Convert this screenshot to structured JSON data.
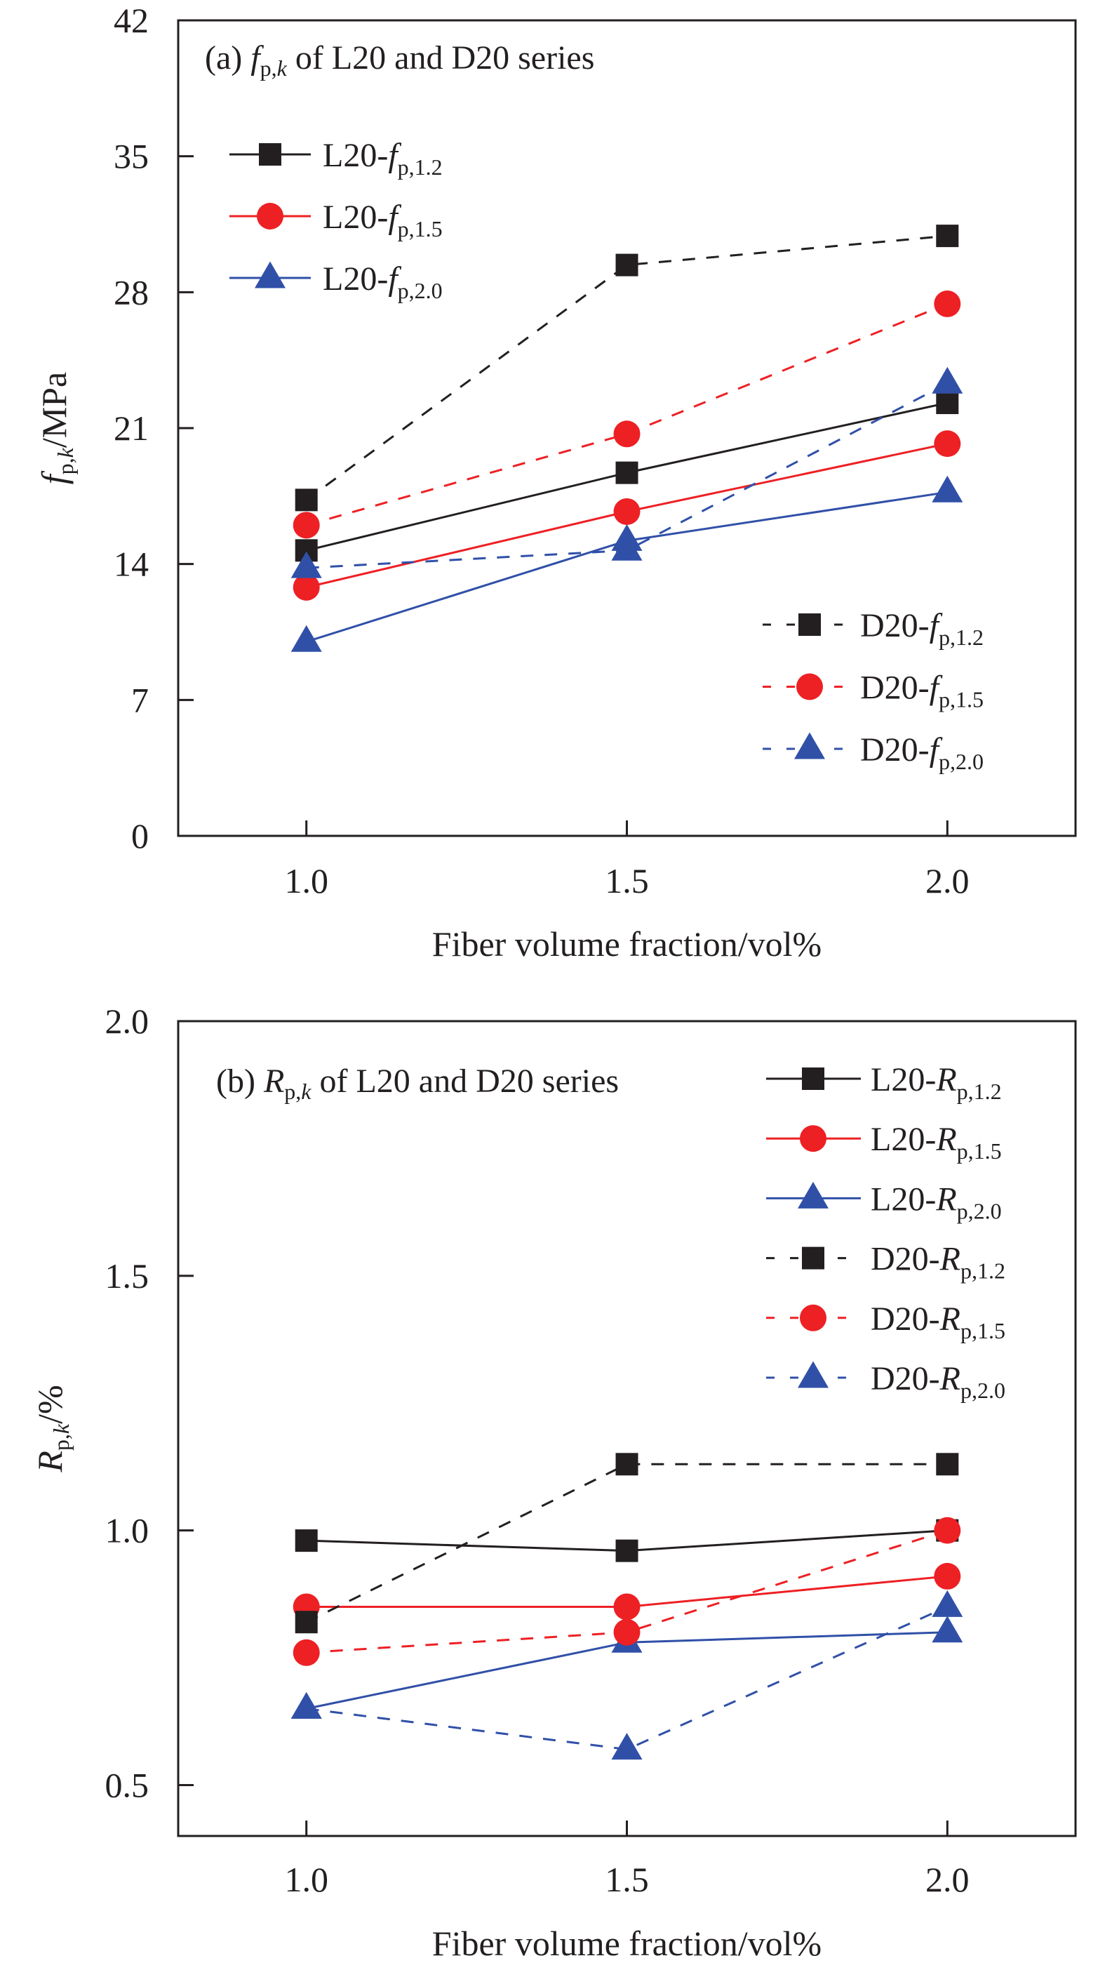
{
  "colors": {
    "black": "#231f20",
    "red": "#ed2024",
    "blue": "#3050a8",
    "axis": "#231f20"
  },
  "chart_data": [
    {
      "type": "line",
      "panel_label": "(a)",
      "title": {
        "prefix": "(a) ",
        "symbol": "f",
        "subscript": "p,",
        "subscript_italic": "k",
        "suffix": " of L20 and D20 series"
      },
      "xlabel": "Fiber volume fraction/vol%",
      "ylabel": {
        "symbol": "f",
        "subscript": "p,",
        "subscript_italic": "k",
        "suffix": "/MPa"
      },
      "x": [
        1.0,
        1.5,
        2.0
      ],
      "xticks": [
        "1.0",
        "1.5",
        "2.0"
      ],
      "xlim": [
        0.8,
        2.2
      ],
      "ylim": [
        0,
        42
      ],
      "yticks": [
        "0",
        "7",
        "14",
        "21",
        "28",
        "35",
        "42"
      ],
      "grid": false,
      "legends": [
        {
          "placement": "top-left",
          "series": [
            0,
            1,
            2
          ]
        },
        {
          "placement": "bottom-right",
          "series": [
            3,
            4,
            5
          ]
        }
      ],
      "series": [
        {
          "name": "L20-fp,1.2",
          "label_main": "L20-",
          "label_symbol": "f",
          "label_sub": "p,1.2",
          "group": "L20",
          "color": "black",
          "marker": "square",
          "dash": "solid",
          "values": [
            14.7,
            18.7,
            22.3
          ]
        },
        {
          "name": "L20-fp,1.5",
          "label_main": "L20-",
          "label_symbol": "f",
          "label_sub": "p,1.5",
          "group": "L20",
          "color": "red",
          "marker": "circle",
          "dash": "solid",
          "values": [
            12.8,
            16.7,
            20.2
          ]
        },
        {
          "name": "L20-fp,2.0",
          "label_main": "L20-",
          "label_symbol": "f",
          "label_sub": "p,2.0",
          "group": "L20",
          "color": "blue",
          "marker": "triangle",
          "dash": "solid",
          "values": [
            10.0,
            15.2,
            17.7
          ]
        },
        {
          "name": "D20-fp,1.2",
          "label_main": "D20-",
          "label_symbol": "f",
          "label_sub": "p,1.2",
          "group": "D20",
          "color": "black",
          "marker": "square",
          "dash": "dashed",
          "values": [
            17.3,
            29.4,
            30.9
          ]
        },
        {
          "name": "D20-fp,1.5",
          "label_main": "D20-",
          "label_symbol": "f",
          "label_sub": "p,1.5",
          "group": "D20",
          "color": "red",
          "marker": "circle",
          "dash": "dashed",
          "values": [
            16.0,
            20.7,
            27.4
          ]
        },
        {
          "name": "D20-fp,2.0",
          "label_main": "D20-",
          "label_symbol": "f",
          "label_sub": "p,2.0",
          "group": "D20",
          "color": "blue",
          "marker": "triangle",
          "dash": "dashed",
          "values": [
            13.8,
            14.7,
            23.3
          ]
        }
      ]
    },
    {
      "type": "line",
      "panel_label": "(b)",
      "title": {
        "prefix": "(b) ",
        "symbol": "R",
        "subscript": "p,",
        "subscript_italic": "k",
        "suffix": " of L20 and D20 series"
      },
      "xlabel": "Fiber volume fraction/vol%",
      "ylabel": {
        "symbol": "R",
        "subscript": "p,",
        "subscript_italic": "k",
        "suffix": "/%"
      },
      "x": [
        1.0,
        1.5,
        2.0
      ],
      "xticks": [
        "1.0",
        "1.5",
        "2.0"
      ],
      "xlim": [
        0.8,
        2.2
      ],
      "ylim": [
        0.4,
        2.0
      ],
      "yticks": [
        "0.5",
        "1.0",
        "1.5",
        "2.0"
      ],
      "grid": false,
      "legends": [
        {
          "placement": "top-right",
          "series": [
            0,
            1,
            2,
            3,
            4,
            5
          ]
        }
      ],
      "series": [
        {
          "name": "L20-Rp,1.2",
          "label_main": "L20-",
          "label_symbol": "R",
          "label_sub": "p,1.2",
          "group": "L20",
          "color": "black",
          "marker": "square",
          "dash": "solid",
          "values": [
            0.98,
            0.96,
            1.0
          ]
        },
        {
          "name": "L20-Rp,1.5",
          "label_main": "L20-",
          "label_symbol": "R",
          "label_sub": "p,1.5",
          "group": "L20",
          "color": "red",
          "marker": "circle",
          "dash": "solid",
          "values": [
            0.85,
            0.85,
            0.91
          ]
        },
        {
          "name": "L20-Rp,2.0",
          "label_main": "L20-",
          "label_symbol": "R",
          "label_sub": "p,2.0",
          "group": "L20",
          "color": "blue",
          "marker": "triangle",
          "dash": "solid",
          "values": [
            0.65,
            0.78,
            0.8
          ]
        },
        {
          "name": "D20-Rp,1.2",
          "label_main": "D20-",
          "label_symbol": "R",
          "label_sub": "p,1.2",
          "group": "D20",
          "color": "black",
          "marker": "square",
          "dash": "dashed",
          "values": [
            0.82,
            1.13,
            1.13
          ]
        },
        {
          "name": "D20-Rp,1.5",
          "label_main": "D20-",
          "label_symbol": "R",
          "label_sub": "p,1.5",
          "group": "D20",
          "color": "red",
          "marker": "circle",
          "dash": "dashed",
          "values": [
            0.76,
            0.8,
            1.0
          ]
        },
        {
          "name": "D20-Rp,2.0",
          "label_main": "D20-",
          "label_symbol": "R",
          "label_sub": "p,2.0",
          "group": "D20",
          "color": "blue",
          "marker": "triangle",
          "dash": "dashed",
          "values": [
            0.65,
            0.57,
            0.85
          ]
        }
      ]
    }
  ]
}
